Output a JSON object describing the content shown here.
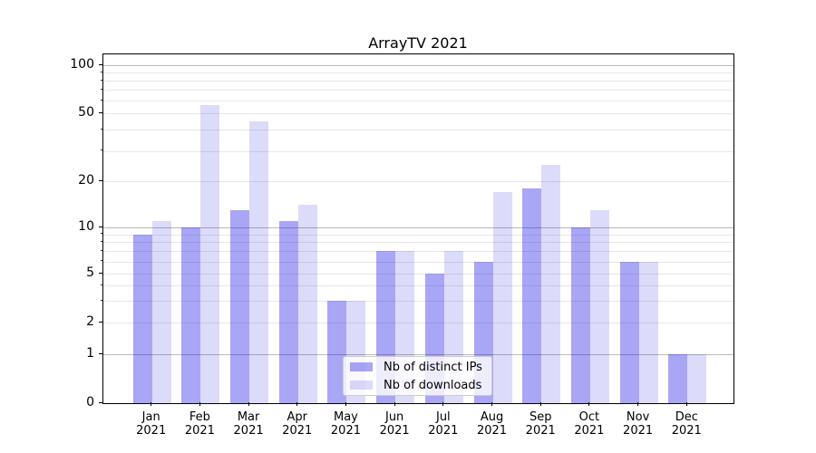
{
  "chart_data": {
    "type": "bar",
    "title": "ArrayTV 2021",
    "year_label": "2021",
    "categories": [
      "Jan",
      "Feb",
      "Mar",
      "Apr",
      "May",
      "Jun",
      "Jul",
      "Aug",
      "Sep",
      "Oct",
      "Nov",
      "Dec"
    ],
    "series": [
      {
        "name": "Nb of distinct IPs",
        "color": "#a9a5f3",
        "rgba": "rgba(10,0,230,0.35)",
        "values": [
          9,
          10,
          13,
          11,
          3,
          7,
          5,
          6,
          18,
          10,
          6,
          1
        ]
      },
      {
        "name": "Nb of downloads",
        "color": "#dedbf9",
        "rgba": "rgba(5,0,212,0.14)",
        "values": [
          11,
          56,
          45,
          14,
          3,
          7,
          7,
          17,
          25,
          13,
          6,
          1
        ]
      }
    ],
    "yscale": "symlog",
    "ytick_labels": [
      "0",
      "1",
      "2",
      "5",
      "10",
      "20",
      "50",
      "100"
    ],
    "ytick_values": [
      0,
      1,
      2,
      5,
      10,
      20,
      50,
      100
    ],
    "ylim": [
      0,
      110
    ],
    "xlabel": "",
    "ylabel": "",
    "grid": "both",
    "legend_position": "lower center"
  }
}
